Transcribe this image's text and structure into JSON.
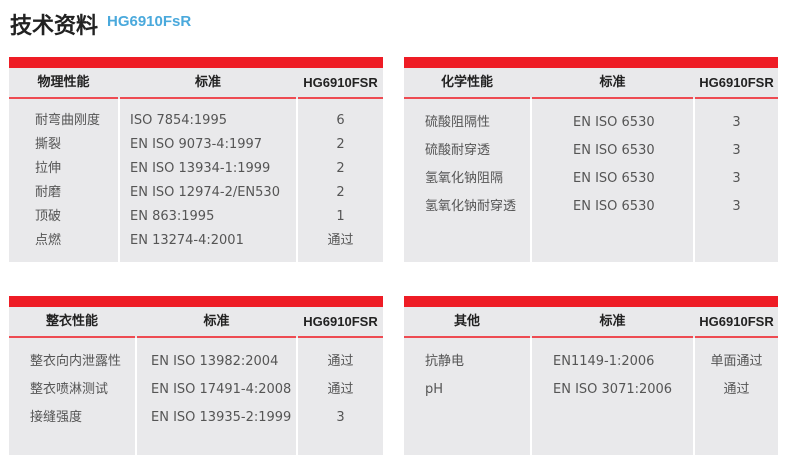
{
  "title": "技术资料",
  "subtitle": "HG6910FsR",
  "colors": {
    "accent": "#ee1c25",
    "subtitle": "#4aa9dc",
    "panel": "#e9e9eb"
  },
  "tables": [
    {
      "headers": [
        "物理性能",
        "标准",
        "HG6910FSR"
      ],
      "rows": [
        [
          "耐弯曲刚度",
          "ISO 7854:1995",
          "6"
        ],
        [
          "撕裂",
          "EN ISO 9073-4:1997",
          "2"
        ],
        [
          "拉伸",
          "EN ISO 13934-1:1999",
          "2"
        ],
        [
          "耐磨",
          "EN ISO 12974-2/EN530",
          "2"
        ],
        [
          "顶破",
          "EN 863:1995",
          "1"
        ],
        [
          "点燃",
          "EN 13274-4:2001",
          "通过"
        ]
      ]
    },
    {
      "headers": [
        "化学性能",
        "标准",
        "HG6910FSR"
      ],
      "rows": [
        [
          "硫酸阻隔性",
          "EN ISO 6530",
          "3"
        ],
        [
          "硫酸耐穿透",
          "EN ISO 6530",
          "3"
        ],
        [
          "氢氧化钠阻隔",
          "EN ISO 6530",
          "3"
        ],
        [
          "氢氧化钠耐穿透",
          "EN ISO 6530",
          "3"
        ]
      ]
    },
    {
      "headers": [
        "整衣性能",
        "标准",
        "HG6910FSR"
      ],
      "rows": [
        [
          "整衣向内泄露性",
          "EN ISO 13982:2004",
          "通过"
        ],
        [
          "整衣喷淋测试",
          "EN ISO 17491-4:2008",
          "通过"
        ],
        [
          "接缝强度",
          "EN ISO 13935-2:1999",
          "3"
        ]
      ]
    },
    {
      "headers": [
        "其他",
        "标准",
        "HG6910FSR"
      ],
      "rows": [
        [
          "抗静电",
          "EN1149-1:2006",
          "单面通过"
        ],
        [
          "pH",
          "EN ISO 3071:2006",
          "通过"
        ]
      ]
    }
  ]
}
